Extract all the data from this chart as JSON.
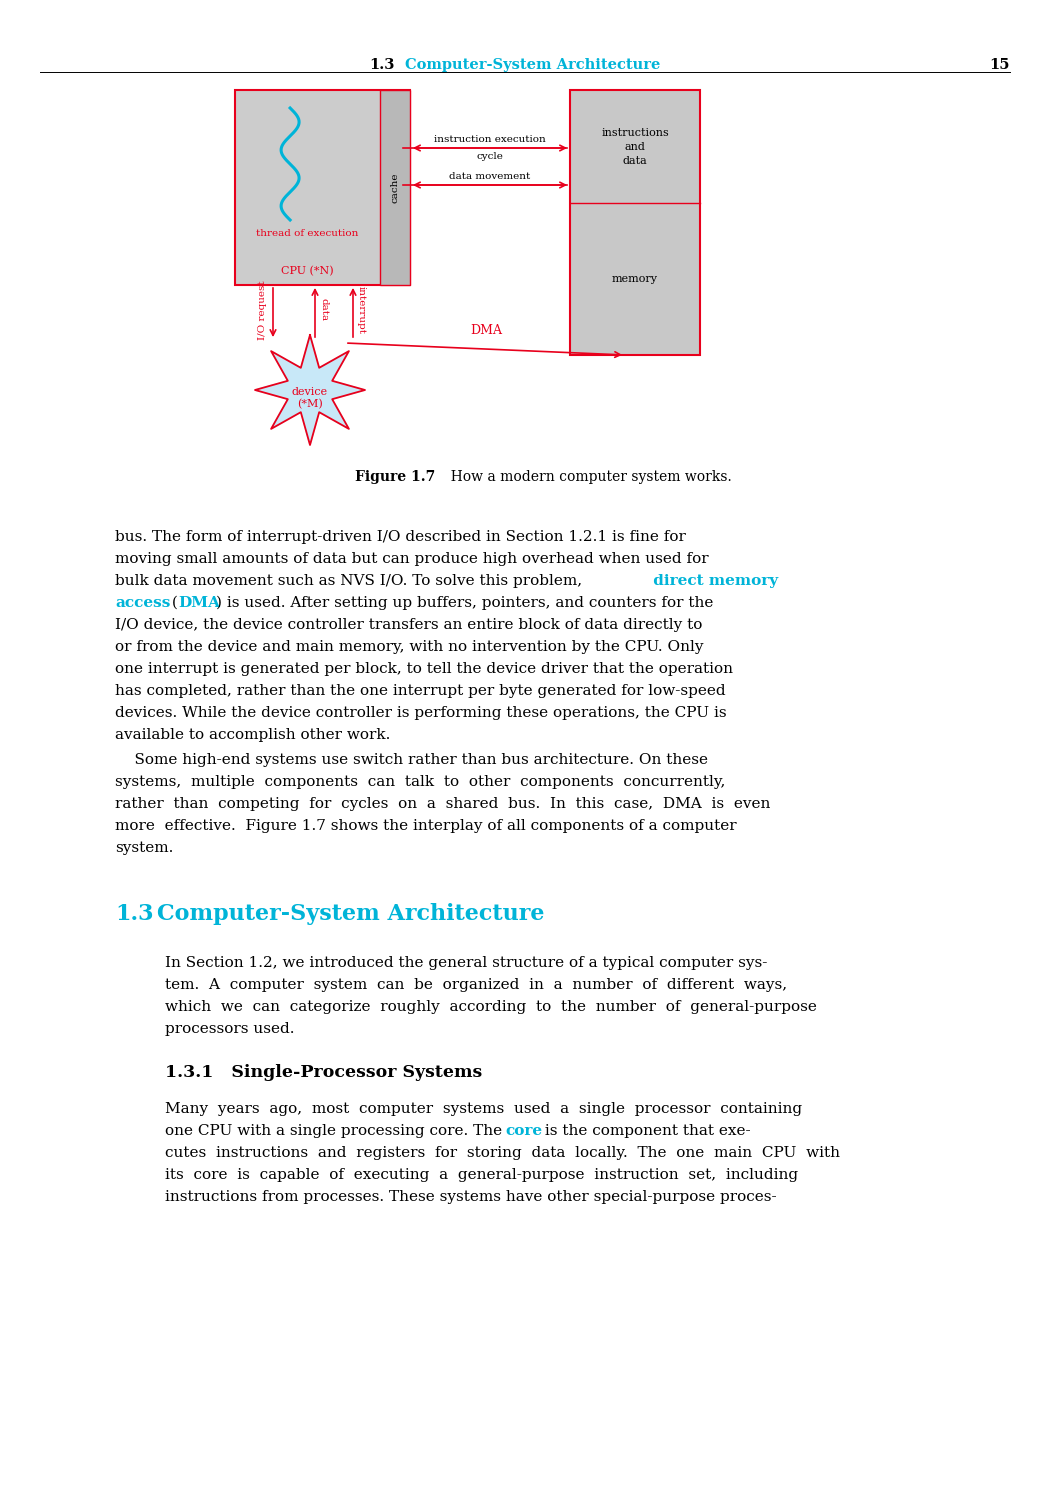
{
  "page_number": "15",
  "header_section": "1.3",
  "header_title": "Computer-System Architecture",
  "cyan": "#00b4d8",
  "red": "#e8001c",
  "black": "#000000",
  "white": "#ffffff",
  "gray_cpu": "#cccccc",
  "gray_mem": "#c8c8c8",
  "gray_cache": "#b8b8b8",
  "device_fill": "#c8e8f8",
  "figure_caption_bold": "Figure 1.7",
  "figure_caption_rest": "  How a modern computer system works.",
  "section_num": "1.3",
  "section_title": "Computer-System Architecture",
  "subsection": "1.3.1   Single-Processor Systems",
  "para1_lines": [
    "bus. The form of interrupt-driven I/O described in Section 1.2.1 is fine for",
    "moving small amounts of data but can produce high overhead when used for",
    "bulk data movement such as NVS I/O. To solve this problem,",
    "access",
    "access (DMA) is used. After setting up buffers, pointers, and counters for the",
    "I/O device, the device controller transfers an entire block of data directly to",
    "or from the device and main memory, with no intervention by the CPU. Only",
    "one interrupt is generated per block, to tell the device driver that the operation",
    "has completed, rather than the one interrupt per byte generated for low-speed",
    "devices. While the device controller is performing these operations, the CPU is",
    "available to accomplish other work."
  ],
  "para2_lines": [
    "    Some high-end systems use switch rather than bus architecture. On these",
    "systems,  multiple  components  can  talk  to  other  components  concurrently,",
    "rather  than  competing  for  cycles  on  a  shared  bus.  In  this  case,  DMA  is  even",
    "more  effective.  Figure  1.7  shows  the  interplay  of  all  components  of  a  computer",
    "system."
  ],
  "para3_lines": [
    "In Section 1.2, we introduced the general structure of a typical computer sys-",
    "tem.  A  computer  system  can  be  organized  in  a  number  of  different  ways,",
    "which  we  can  categorize  roughly  according  to  the  number  of  general-purpose",
    "processors used."
  ],
  "para4_lines": [
    "Many  years  ago,  most  computer  systems  used  a  single  processor  containing",
    "one CPU with a single processing core. The",
    "cutes  instructions  and  registers  for  storing  data  locally.  The  one  main  CPU  with",
    "its  core  is  capable  of  executing  a  general-purpose  instruction  set,  including",
    "instructions from processes. These systems have other special-purpose proces-"
  ],
  "text_fontsize": 11.0,
  "header_fontsize": 10.5,
  "section_fontsize": 16.0,
  "subsec_fontsize": 12.5
}
